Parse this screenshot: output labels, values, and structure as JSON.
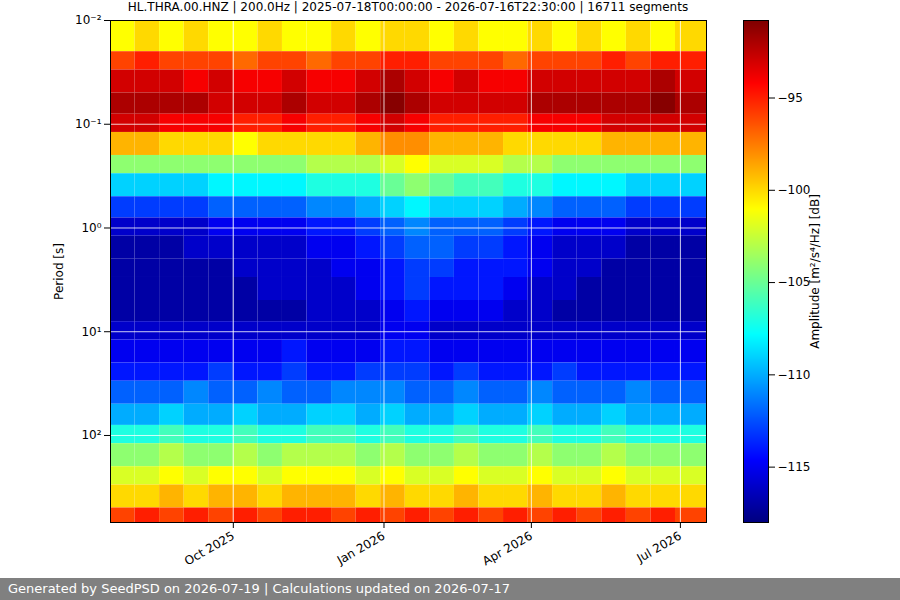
{
  "chart_data": {
    "type": "heatmap",
    "title": "HL.THRA.00.HNZ | 200.0Hz | 2025-07-18T00:00:00 - 2026-07-16T22:30:00 | 16711 segments",
    "caption": "Generated by SeedPSD on 2026-07-19 | Calculations updated on 2026-07-17",
    "y_label": "Period [s]",
    "color": "jet",
    "log": "y",
    "grid": true,
    "xlim": [
      "2025-07-18T00:00:00",
      "2026-07-16T22:30:00"
    ],
    "xticks": [
      {
        "value": "2025-10-01",
        "label": "Oct 2025"
      },
      {
        "value": "2026-01-01",
        "label": "Jan 2026"
      },
      {
        "value": "2026-04-01",
        "label": "Apr 2026"
      },
      {
        "value": "2026-07-01",
        "label": "Jul 2026"
      }
    ],
    "ylim": [
      0.01,
      690
    ],
    "yticks": [
      {
        "value": 0.01,
        "label": "10⁻²"
      },
      {
        "value": 0.1,
        "label": "10⁻¹"
      },
      {
        "value": 1,
        "label": "10⁰"
      },
      {
        "value": 10,
        "label": "10¹"
      },
      {
        "value": 100,
        "label": "10²"
      }
    ],
    "x": [
      "2025-07-18T00:00:00",
      "2025-08-02",
      "2025-08-17",
      "2025-09-01",
      "2025-09-16",
      "2025-10-01",
      "2025-10-16",
      "2025-10-31",
      "2025-11-15",
      "2025-11-30",
      "2025-12-15",
      "2025-12-30",
      "2026-01-14",
      "2026-01-29",
      "2026-02-13",
      "2026-02-28",
      "2026-03-15",
      "2026-03-30",
      "2026-04-14",
      "2026-04-29",
      "2026-05-14",
      "2026-05-29",
      "2026-06-13",
      "2026-06-28",
      "2026-07-16T22:30:00"
    ],
    "y": [
      0.01,
      0.02,
      0.03,
      0.05,
      0.08,
      0.12,
      0.2,
      0.3,
      0.5,
      0.8,
      1.2,
      2,
      3,
      5,
      8,
      12,
      20,
      30,
      50,
      80,
      120,
      200,
      300,
      500,
      690
    ],
    "values": [
      [
        -101,
        -100,
        -101,
        -100,
        -101,
        -101,
        -100,
        -101,
        -101,
        -100,
        -101,
        -100,
        -100,
        -101,
        -100,
        -101,
        -101,
        -100,
        -101,
        -100,
        -101,
        -100,
        -101,
        -100
      ],
      [
        -96,
        -95,
        -96,
        -96,
        -96,
        -97,
        -96,
        -96,
        -97,
        -96,
        -96,
        -95,
        -95,
        -96,
        -96,
        -96,
        -97,
        -96,
        -96,
        -96,
        -95,
        -96,
        -95,
        -95
      ],
      [
        -93,
        -93,
        -93,
        -94,
        -93,
        -94,
        -94,
        -93,
        -94,
        -94,
        -93,
        -92,
        -93,
        -94,
        -93,
        -94,
        -94,
        -93,
        -93,
        -93,
        -93,
        -93,
        -92,
        -93
      ],
      [
        -92,
        -92,
        -92,
        -92,
        -93,
        -93,
        -93,
        -92,
        -93,
        -93,
        -92,
        -91,
        -92,
        -93,
        -93,
        -93,
        -93,
        -92,
        -92,
        -92,
        -92,
        -92,
        -91,
        -92
      ],
      [
        -93,
        -93,
        -94,
        -94,
        -94,
        -95,
        -95,
        -94,
        -95,
        -95,
        -94,
        -93,
        -94,
        -95,
        -95,
        -95,
        -95,
        -94,
        -94,
        -94,
        -93,
        -93,
        -93,
        -93
      ],
      [
        -99,
        -99,
        -100,
        -100,
        -100,
        -101,
        -100,
        -100,
        -100,
        -100,
        -99,
        -98,
        -98,
        -99,
        -99,
        -99,
        -100,
        -100,
        -100,
        -100,
        -99,
        -99,
        -99,
        -99
      ],
      [
        -104,
        -104,
        -104,
        -104,
        -104,
        -104,
        -104,
        -104,
        -103,
        -103,
        -103,
        -102,
        -101,
        -102,
        -102,
        -102,
        -103,
        -103,
        -104,
        -104,
        -104,
        -104,
        -104,
        -104
      ],
      [
        -109,
        -109,
        -109,
        -109,
        -108,
        -108,
        -108,
        -108,
        -107,
        -107,
        -107,
        -105,
        -104,
        -105,
        -106,
        -106,
        -107,
        -107,
        -108,
        -108,
        -108,
        -109,
        -109,
        -109
      ],
      [
        -113,
        -113,
        -113,
        -113,
        -112,
        -112,
        -112,
        -112,
        -111,
        -111,
        -110,
        -109,
        -108,
        -109,
        -109,
        -109,
        -110,
        -111,
        -112,
        -112,
        -112,
        -113,
        -113,
        -113
      ],
      [
        -116,
        -116,
        -116,
        -116,
        -115,
        -115,
        -115,
        -115,
        -114,
        -114,
        -113,
        -112,
        -111,
        -112,
        -112,
        -112,
        -113,
        -114,
        -115,
        -115,
        -115,
        -116,
        -116,
        -116
      ],
      [
        -117,
        -117,
        -117,
        -116,
        -116,
        -116,
        -116,
        -116,
        -115,
        -115,
        -114,
        -113,
        -112,
        -112,
        -113,
        -113,
        -114,
        -115,
        -116,
        -116,
        -116,
        -117,
        -117,
        -117
      ],
      [
        -117,
        -117,
        -117,
        -117,
        -117,
        -116,
        -116,
        -116,
        -116,
        -115,
        -115,
        -114,
        -113,
        -113,
        -114,
        -114,
        -114,
        -115,
        -116,
        -116,
        -117,
        -117,
        -117,
        -117
      ],
      [
        -117,
        -117,
        -117,
        -117,
        -117,
        -117,
        -116,
        -116,
        -116,
        -116,
        -115,
        -114,
        -113,
        -114,
        -114,
        -114,
        -115,
        -116,
        -116,
        -117,
        -117,
        -117,
        -117,
        -117
      ],
      [
        -117,
        -117,
        -117,
        -117,
        -117,
        -117,
        -117,
        -117,
        -116,
        -116,
        -116,
        -115,
        -114,
        -115,
        -115,
        -115,
        -116,
        -116,
        -117,
        -117,
        -117,
        -117,
        -117,
        -117
      ],
      [
        -116,
        -116,
        -116,
        -116,
        -116,
        -116,
        -116,
        -116,
        -116,
        -116,
        -116,
        -115,
        -115,
        -116,
        -116,
        -116,
        -116,
        -116,
        -116,
        -116,
        -116,
        -116,
        -116,
        -116
      ],
      [
        -115,
        -115,
        -115,
        -115,
        -115,
        -115,
        -115,
        -114,
        -115,
        -115,
        -115,
        -114,
        -114,
        -115,
        -115,
        -115,
        -115,
        -115,
        -115,
        -115,
        -115,
        -115,
        -115,
        -115
      ],
      [
        -114,
        -114,
        -114,
        -114,
        -113,
        -114,
        -114,
        -113,
        -114,
        -114,
        -113,
        -113,
        -113,
        -114,
        -113,
        -114,
        -114,
        -114,
        -113,
        -114,
        -114,
        -114,
        -114,
        -114
      ],
      [
        -112,
        -112,
        -112,
        -111,
        -112,
        -112,
        -111,
        -112,
        -112,
        -111,
        -111,
        -111,
        -112,
        -112,
        -111,
        -112,
        -112,
        -111,
        -112,
        -112,
        -112,
        -111,
        -112,
        -112
      ],
      [
        -110,
        -110,
        -109,
        -110,
        -110,
        -109,
        -110,
        -110,
        -109,
        -109,
        -110,
        -109,
        -110,
        -110,
        -109,
        -110,
        -110,
        -109,
        -110,
        -110,
        -109,
        -110,
        -110,
        -110
      ],
      [
        -107,
        -107,
        -106,
        -107,
        -107,
        -106,
        -107,
        -107,
        -106,
        -106,
        -107,
        -106,
        -107,
        -107,
        -106,
        -107,
        -107,
        -106,
        -107,
        -107,
        -106,
        -107,
        -107,
        -107
      ],
      [
        -104,
        -104,
        -103,
        -104,
        -104,
        -103,
        -104,
        -103,
        -103,
        -103,
        -104,
        -103,
        -104,
        -104,
        -103,
        -104,
        -104,
        -103,
        -104,
        -104,
        -103,
        -104,
        -104,
        -104
      ],
      [
        -102,
        -102,
        -101,
        -102,
        -101,
        -101,
        -102,
        -101,
        -101,
        -101,
        -102,
        -101,
        -102,
        -102,
        -101,
        -102,
        -102,
        -101,
        -102,
        -102,
        -101,
        -102,
        -102,
        -102
      ],
      [
        -100,
        -100,
        -99,
        -100,
        -99,
        -99,
        -100,
        -99,
        -99,
        -99,
        -100,
        -99,
        -100,
        -100,
        -99,
        -100,
        -100,
        -99,
        -100,
        -100,
        -99,
        -100,
        -100,
        -100
      ],
      [
        -96,
        -95,
        -96,
        -95,
        -96,
        -95,
        -96,
        -95,
        -95,
        -96,
        -95,
        -96,
        -95,
        -96,
        -95,
        -96,
        -95,
        -96,
        -95,
        -96,
        -95,
        -96,
        -95,
        -96
      ]
    ],
    "colorbar": {
      "label": "Amplitude [m²/s⁴/Hz] [dB]",
      "range": [
        -118,
        -90.8
      ],
      "ticks": [
        {
          "value": -115,
          "label": "−115"
        },
        {
          "value": -110,
          "label": "−110"
        },
        {
          "value": -105,
          "label": "−105"
        },
        {
          "value": -100,
          "label": "−100"
        },
        {
          "value": -95,
          "label": "−95"
        }
      ]
    }
  }
}
